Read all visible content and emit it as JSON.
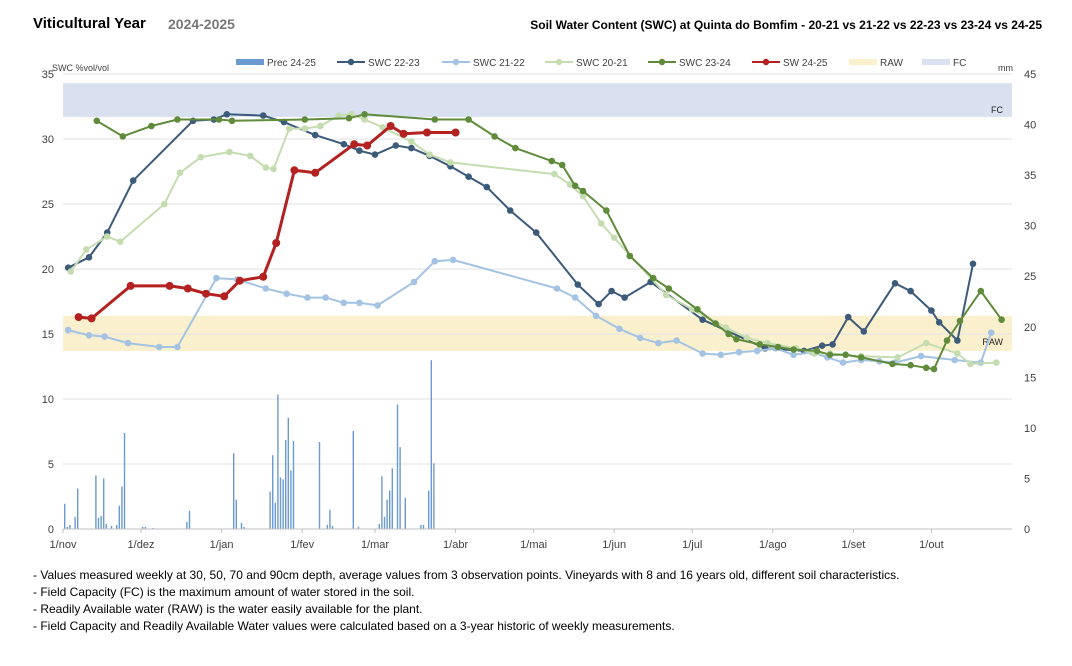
{
  "header": {
    "title": "Viticultural Year",
    "year": "2024-2025",
    "chart_title": "Soil Water Content (SWC) at Quinta do Bomfim - 20-21 vs 21-22 vs 22-23 vs 23-24 vs 24-25"
  },
  "notes": [
    "- Values measured weekly at 30, 50, 70 and 90cm depth, average values from 3 observation points. Vineyards with 8 and 16 years old, different soil characteristics.",
    "- Field Capacity (FC) is the maximum amount of water stored in the soil.",
    "- Readily Available water (RAW) is the water easily available for the plant.",
    "- Field Capacity and Readily Available Water values were calculated based on a 3-year historic of weekly measurements."
  ],
  "chart_data": {
    "type": "line",
    "ylabel": "SWC %vol/vol",
    "y2label": "mm",
    "ylim": [
      0,
      35
    ],
    "y2lim": [
      0,
      45
    ],
    "yticks": [
      0,
      5,
      10,
      15,
      20,
      25,
      30,
      35
    ],
    "y2ticks": [
      0,
      5,
      10,
      15,
      20,
      25,
      30,
      35,
      40,
      45
    ],
    "xlim": [
      0,
      365
    ],
    "xticks": [
      {
        "day": 0,
        "label": "1/nov"
      },
      {
        "day": 30,
        "label": "1/dez"
      },
      {
        "day": 61,
        "label": "1/jan"
      },
      {
        "day": 92,
        "label": "1/fev"
      },
      {
        "day": 120,
        "label": "1/mar"
      },
      {
        "day": 151,
        "label": "1/abr"
      },
      {
        "day": 181,
        "label": "1/mai"
      },
      {
        "day": 212,
        "label": "1/jun"
      },
      {
        "day": 242,
        "label": "1/jul"
      },
      {
        "day": 273,
        "label": "1/ago"
      },
      {
        "day": 304,
        "label": "1/set"
      },
      {
        "day": 334,
        "label": "1/out"
      }
    ],
    "grid": true,
    "legend_position": "top",
    "bands": [
      {
        "name": "FC",
        "from": 31.7,
        "to": 34.3,
        "color": "#d9e1f0",
        "label": "FC"
      },
      {
        "name": "RAW",
        "from": 13.7,
        "to": 16.4,
        "color": "#fbf0cd",
        "label": "RAW"
      }
    ],
    "precipitation": {
      "name": "Prec 24-25",
      "color": "#6a9bd0",
      "axis": "right",
      "bars": [
        [
          0,
          2.5
        ],
        [
          1,
          0.2
        ],
        [
          2,
          0.4
        ],
        [
          4,
          1.2
        ],
        [
          5,
          4.0
        ],
        [
          12,
          5.3
        ],
        [
          13,
          1.1
        ],
        [
          14,
          1.3
        ],
        [
          15,
          5.0
        ],
        [
          16,
          0.5
        ],
        [
          18,
          0.3
        ],
        [
          20,
          0.4
        ],
        [
          21,
          2.3
        ],
        [
          22,
          4.2
        ],
        [
          23,
          9.5
        ],
        [
          30,
          0.2
        ],
        [
          31,
          0.2
        ],
        [
          34,
          0.1
        ],
        [
          47,
          0.7
        ],
        [
          48,
          1.8
        ],
        [
          65,
          7.5
        ],
        [
          66,
          2.9
        ],
        [
          68,
          0.6
        ],
        [
          69,
          0.2
        ],
        [
          79,
          3.7
        ],
        [
          80,
          7.3
        ],
        [
          81,
          2.6
        ],
        [
          82,
          13.3
        ],
        [
          83,
          5.1
        ],
        [
          84,
          4.9
        ],
        [
          85,
          8.8
        ],
        [
          86,
          11.0
        ],
        [
          87,
          5.8
        ],
        [
          88,
          8.7
        ],
        [
          98,
          8.6
        ],
        [
          101,
          0.4
        ],
        [
          102,
          1.9
        ],
        [
          103,
          0.3
        ],
        [
          111,
          9.7
        ],
        [
          113,
          0.2
        ],
        [
          121,
          0.5
        ],
        [
          122,
          5.2
        ],
        [
          123,
          1.2
        ],
        [
          124,
          2.9
        ],
        [
          125,
          3.8
        ],
        [
          126,
          6.0
        ],
        [
          128,
          12.3
        ],
        [
          129,
          8.1
        ],
        [
          131,
          3.1
        ],
        [
          137,
          0.4
        ],
        [
          138,
          0.4
        ],
        [
          140,
          3.8
        ],
        [
          141,
          16.7
        ],
        [
          142,
          6.5
        ]
      ]
    },
    "series": [
      {
        "name": "SWC 22-23",
        "color": "#3c5a7a",
        "x": [
          2,
          10,
          17,
          27,
          50,
          58,
          63,
          77,
          85,
          97,
          108,
          114,
          120,
          128,
          134,
          141,
          149,
          156,
          163,
          172,
          182,
          198,
          206,
          211,
          216,
          226,
          246,
          270,
          285,
          292,
          296,
          302,
          308,
          320,
          326,
          334,
          337,
          344,
          350
        ],
        "y": [
          20.1,
          20.9,
          22.8,
          26.8,
          31.4,
          31.5,
          31.9,
          31.8,
          31.3,
          30.3,
          29.6,
          29.1,
          28.8,
          29.5,
          29.3,
          28.7,
          27.9,
          27.1,
          26.3,
          24.5,
          22.8,
          18.8,
          17.3,
          18.3,
          17.8,
          19.0,
          16.1,
          13.9,
          13.7,
          14.1,
          14.2,
          16.3,
          15.2,
          18.9,
          18.3,
          16.8,
          15.9,
          14.5,
          20.4
        ]
      },
      {
        "name": "SWC 21-22",
        "color": "#a4c3e2",
        "x": [
          2,
          10,
          16,
          25,
          37,
          44,
          59,
          67,
          78,
          86,
          94,
          101,
          108,
          114,
          121,
          135,
          143,
          150,
          190,
          197,
          205,
          214,
          222,
          229,
          236,
          246,
          253,
          260,
          267,
          274,
          281,
          288,
          294,
          300,
          307,
          314,
          320,
          330,
          343,
          353,
          357
        ],
        "y": [
          15.3,
          14.9,
          14.8,
          14.3,
          14.0,
          14.0,
          19.3,
          19.2,
          18.5,
          18.1,
          17.8,
          17.8,
          17.4,
          17.4,
          17.2,
          19.0,
          20.6,
          20.7,
          18.5,
          17.8,
          16.4,
          15.4,
          14.7,
          14.3,
          14.5,
          13.5,
          13.4,
          13.6,
          13.7,
          13.9,
          13.4,
          13.6,
          13.2,
          12.8,
          13.0,
          12.9,
          12.8,
          13.3,
          13.0,
          12.8,
          15.1
        ]
      },
      {
        "name": "SWC 20-21",
        "color": "#c5dcb0",
        "x": [
          3,
          9,
          17,
          22,
          39,
          45,
          53,
          64,
          72,
          78,
          81,
          87,
          93,
          99,
          106,
          111,
          116,
          123,
          134,
          141,
          149,
          189,
          195,
          200,
          207,
          212,
          232,
          242,
          255,
          263,
          271,
          282,
          289,
          295,
          307,
          321,
          332,
          344,
          349,
          359
        ],
        "y": [
          19.8,
          21.5,
          22.5,
          22.1,
          25.0,
          27.4,
          28.6,
          29.0,
          28.7,
          27.8,
          27.7,
          30.8,
          30.8,
          31.0,
          31.8,
          31.9,
          31.5,
          30.9,
          29.8,
          28.8,
          28.2,
          27.3,
          26.5,
          25.6,
          23.5,
          22.4,
          18.0,
          16.9,
          15.5,
          14.7,
          14.3,
          13.9,
          13.5,
          13.5,
          13.3,
          13.2,
          14.3,
          13.5,
          12.7,
          12.8
        ]
      },
      {
        "name": "SWC 23-24",
        "color": "#5f8b3b",
        "x": [
          13,
          23,
          34,
          44,
          60,
          65,
          93,
          110,
          116,
          143,
          156,
          166,
          174,
          188,
          192,
          197,
          200,
          209,
          218,
          227,
          233,
          244,
          251,
          256,
          259,
          268,
          275,
          281,
          290,
          295,
          301,
          307,
          319,
          326,
          332,
          335,
          340,
          345,
          353,
          361
        ],
        "y": [
          31.4,
          30.2,
          31.0,
          31.5,
          31.5,
          31.4,
          31.5,
          31.6,
          31.9,
          31.5,
          31.5,
          30.2,
          29.3,
          28.3,
          28.0,
          26.4,
          26.0,
          24.5,
          21.0,
          19.3,
          18.5,
          16.9,
          15.8,
          15.0,
          14.6,
          14.2,
          14.0,
          13.8,
          13.7,
          13.4,
          13.4,
          13.2,
          12.7,
          12.6,
          12.4,
          12.3,
          14.5,
          16.0,
          18.3,
          16.1
        ]
      },
      {
        "name": "SW 24-25",
        "color": "#b32121",
        "x": [
          6,
          11,
          26,
          41,
          48,
          55,
          62,
          68,
          77,
          82,
          89,
          97,
          112,
          117,
          126,
          131,
          140,
          151
        ],
        "y": [
          16.3,
          16.2,
          18.7,
          18.7,
          18.5,
          18.1,
          17.9,
          19.1,
          19.4,
          22.0,
          27.6,
          27.4,
          29.6,
          29.5,
          31.0,
          30.4,
          30.5,
          30.5
        ]
      }
    ]
  }
}
